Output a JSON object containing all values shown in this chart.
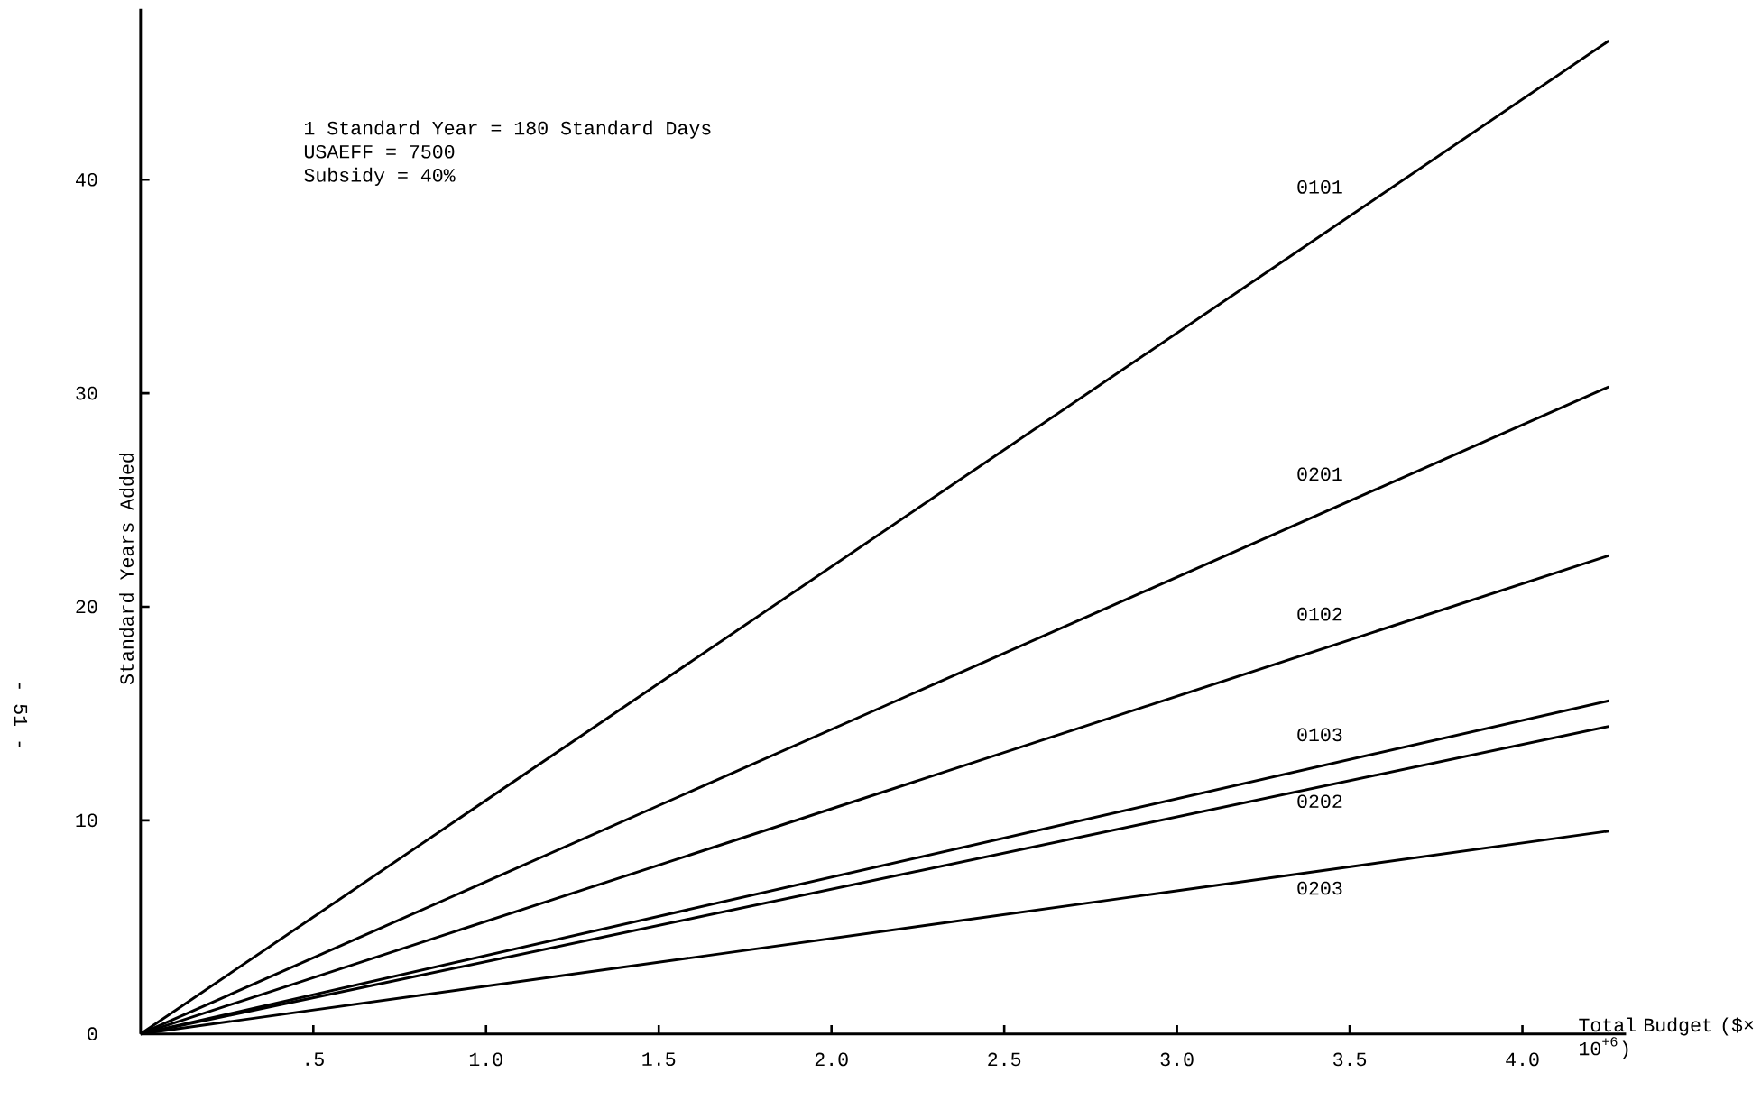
{
  "chart_data": {
    "type": "line",
    "xlabel": "Total Budget ($× 10$^{+6}$)",
    "ylabel": "Standard Years Added",
    "annotations": [
      "1 Standard Year = 180 Standard Days",
      "USAEFF = 7500",
      "Subsidy = 40%",
      "- 51 -"
    ],
    "xlim": [
      0,
      4.3
    ],
    "ylim": [
      0,
      48
    ],
    "xticks": [
      {
        "value": 0.5,
        "label": ".5"
      },
      {
        "value": 1.0,
        "label": "1.0"
      },
      {
        "value": 1.5,
        "label": "1.5"
      },
      {
        "value": 2.0,
        "label": "2.0"
      },
      {
        "value": 2.5,
        "label": "2.5"
      },
      {
        "value": 3.0,
        "label": "3.0"
      },
      {
        "value": 3.5,
        "label": "3.5"
      },
      {
        "value": 4.0,
        "label": "4.0"
      }
    ],
    "yticks": [
      0,
      10,
      20,
      30,
      40
    ],
    "x": [
      0,
      4.25
    ],
    "series": [
      {
        "name": "0101",
        "color": "#000000",
        "values": [
          0,
          46.5
        ]
      },
      {
        "name": "0201",
        "color": "#000000",
        "values": [
          0,
          30.3
        ]
      },
      {
        "name": "0102",
        "color": "#000000",
        "values": [
          0,
          22.4
        ]
      },
      {
        "name": "0103",
        "color": "#000000",
        "values": [
          0,
          15.6
        ]
      },
      {
        "name": "0202",
        "color": "#000000",
        "values": [
          0,
          14.4
        ]
      },
      {
        "name": "0203",
        "color": "#000000",
        "values": [
          0,
          9.5
        ]
      }
    ],
    "grid": false,
    "legend": false,
    "marker": "none"
  }
}
